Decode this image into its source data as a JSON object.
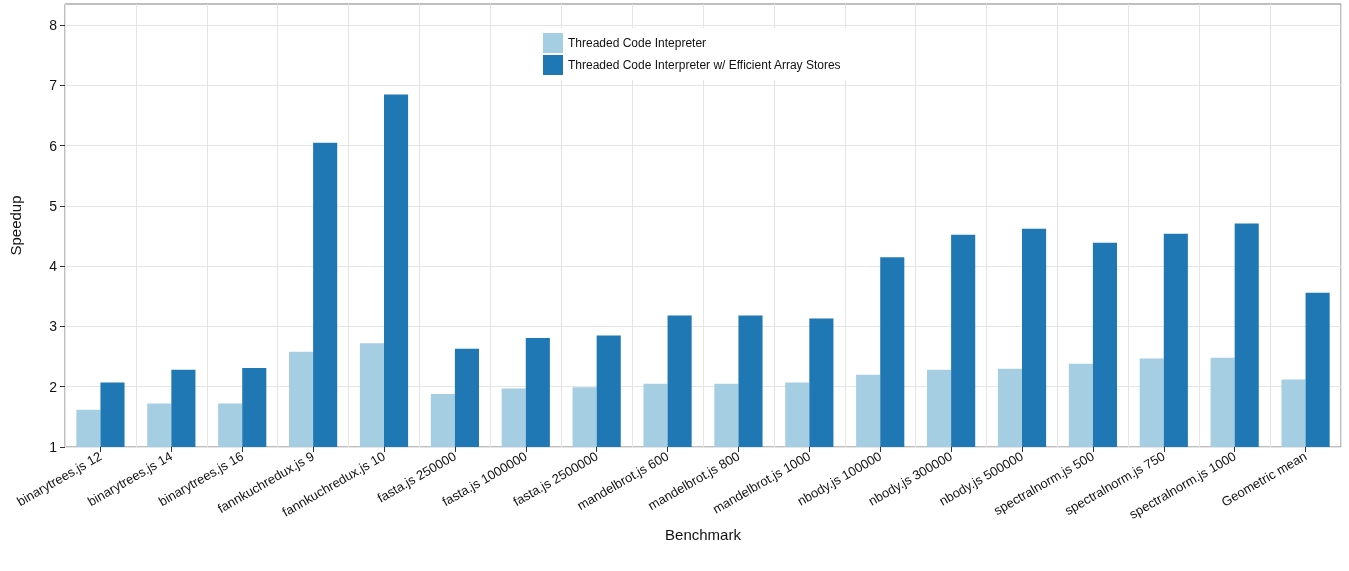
{
  "chart_data": {
    "type": "bar",
    "xlabel": "Benchmark",
    "ylabel": "Speedup",
    "categories": [
      "binarytrees.js 12",
      "binarytrees.js 14",
      "binarytrees.js 16",
      "fannkuchredux.js 9",
      "fannkuchredux.js 10",
      "fasta.js 250000",
      "fasta.js 1000000",
      "fasta.js 2500000",
      "mandelbrot.js 600",
      "mandelbrot.js 800",
      "mandelbrot.js 1000",
      "nbody.js 100000",
      "nbody.js 300000",
      "nbody.js 500000",
      "spectralnorm.js 500",
      "spectralnorm.js 750",
      "spectralnorm.js 1000",
      "Geometric mean"
    ],
    "series": [
      {
        "name": "Threaded Code Intepreter",
        "color": "#a6cee3",
        "values": [
          1.62,
          1.72,
          1.72,
          2.58,
          2.72,
          1.88,
          1.97,
          1.99,
          2.05,
          2.05,
          2.07,
          2.2,
          2.28,
          2.3,
          2.38,
          2.47,
          2.48,
          2.12
        ]
      },
      {
        "name": "Threaded Code Interpreter w/ Efficient Array Stores",
        "color": "#1f78b4",
        "values": [
          2.07,
          2.28,
          2.31,
          6.05,
          6.85,
          2.63,
          2.81,
          2.85,
          3.18,
          3.18,
          3.13,
          4.15,
          4.52,
          4.62,
          4.39,
          4.54,
          4.71,
          3.56
        ]
      }
    ],
    "ylim": [
      1,
      8.35
    ],
    "yticks": [
      1,
      2,
      3,
      4,
      5,
      6,
      7,
      8
    ],
    "grid": true,
    "legend": "top"
  }
}
